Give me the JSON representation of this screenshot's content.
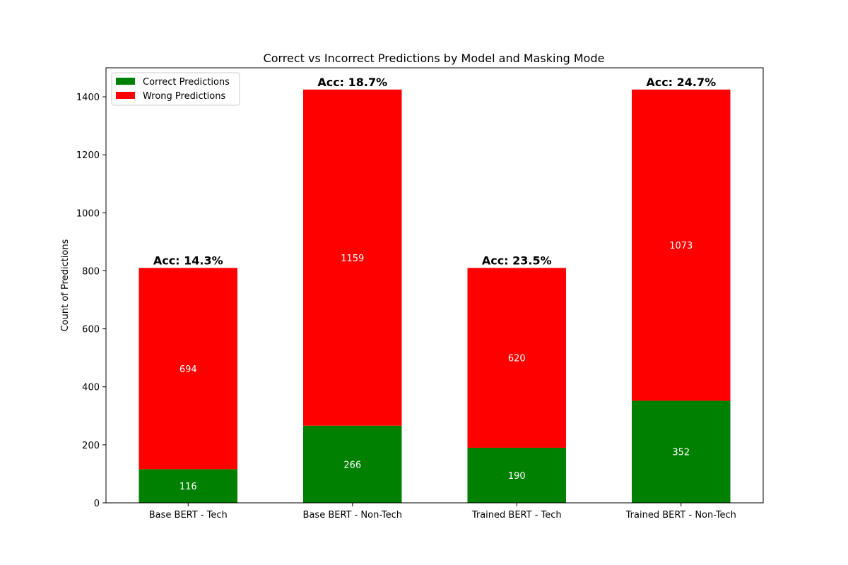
{
  "chart_data": {
    "type": "bar",
    "stacked": true,
    "title": "Correct vs Incorrect Predictions by Model and Masking Mode",
    "xlabel": "",
    "ylabel": "Count of Predictions",
    "ylim": [
      0,
      1500
    ],
    "yticks": [
      0,
      200,
      400,
      600,
      800,
      1000,
      1200,
      1400
    ],
    "categories": [
      "Base BERT - Tech",
      "Base BERT - Non-Tech",
      "Trained BERT - Tech",
      "Trained BERT - Non-Tech"
    ],
    "series": [
      {
        "name": "Correct Predictions",
        "color": "#008000",
        "values": [
          116,
          266,
          190,
          352
        ]
      },
      {
        "name": "Wrong Predictions",
        "color": "#ff0000",
        "values": [
          694,
          1159,
          620,
          1073
        ]
      }
    ],
    "accuracy_labels": [
      "Acc: 14.3%",
      "Acc: 18.7%",
      "Acc: 23.5%",
      "Acc: 24.7%"
    ],
    "legend_position": "upper-left",
    "grid": false
  }
}
